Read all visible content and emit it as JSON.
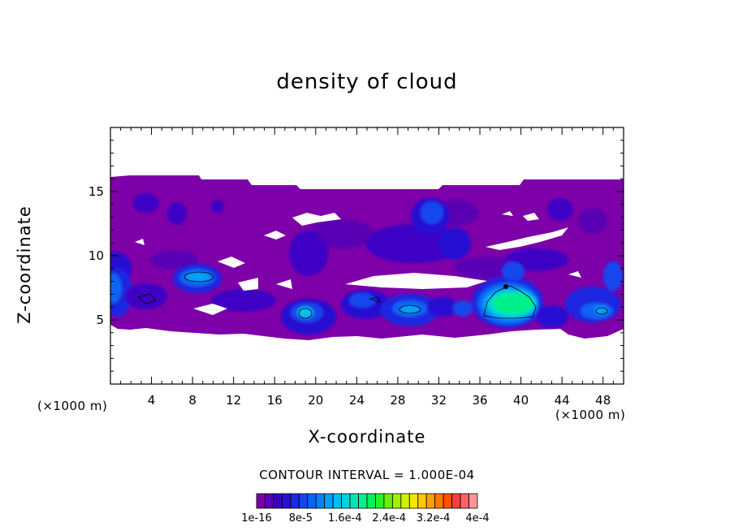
{
  "chart_data": {
    "type": "heatmap",
    "title": "density of cloud",
    "xlabel": "X-coordinate",
    "ylabel": "Z-coordinate",
    "x_unit": "(×1000 m)",
    "xlim": [
      0,
      50
    ],
    "ylim": [
      0,
      20
    ],
    "x_ticks": [
      4,
      8,
      12,
      16,
      20,
      24,
      28,
      32,
      36,
      40,
      44,
      48
    ],
    "y_ticks": [
      5,
      10,
      15
    ],
    "contour_interval_label": "CONTOUR INTERVAL = 1.000E-04",
    "colorbar": {
      "tick_labels": [
        "1e-16",
        "8e-5",
        "1.6e-4",
        "2.4e-4",
        "3.2e-4",
        "4e-4"
      ],
      "colors": [
        "#7d00a8",
        "#5a00b4",
        "#3c00c4",
        "#2810d2",
        "#1e28e0",
        "#1446ec",
        "#0a64f5",
        "#0082fa",
        "#00a0fa",
        "#00bef0",
        "#00d2dc",
        "#00e6b4",
        "#00f08c",
        "#00f05a",
        "#28f028",
        "#64f000",
        "#a0f000",
        "#d2f000",
        "#f5e600",
        "#ffc800",
        "#ffa000",
        "#ff7800",
        "#ff5000",
        "#ff3c3c",
        "#ff6464",
        "#ff9696"
      ]
    },
    "grid": false,
    "cloud_regions": [
      {
        "x_center": 3.5,
        "z_center": 14.3,
        "level": 2
      },
      {
        "x_center": 6.5,
        "z_center": 13.5,
        "level": 2
      },
      {
        "x_center": 30.5,
        "z_center": 13.0,
        "level": 4
      },
      {
        "x_center": 42.5,
        "z_center": 13.3,
        "level": 2
      },
      {
        "x_center": 21.0,
        "z_center": 11.0,
        "level": 2
      },
      {
        "x_center": 31.0,
        "z_center": 10.5,
        "level": 4
      },
      {
        "x_center": 1.0,
        "z_center": 7.5,
        "level": 5
      },
      {
        "x_center": 8.5,
        "z_center": 8.5,
        "level": 5
      },
      {
        "x_center": 18.5,
        "z_center": 5.3,
        "level": 6
      },
      {
        "x_center": 24.0,
        "z_center": 6.0,
        "level": 5
      },
      {
        "x_center": 29.5,
        "z_center": 5.8,
        "level": 6
      },
      {
        "x_center": 38.0,
        "z_center": 6.5,
        "level": 12
      },
      {
        "x_center": 39.0,
        "z_center": 9.0,
        "level": 5
      },
      {
        "x_center": 47.0,
        "z_center": 6.3,
        "level": 5
      }
    ],
    "cloud_layer": {
      "z_bottom": 4.0,
      "z_top": 16.0
    }
  }
}
